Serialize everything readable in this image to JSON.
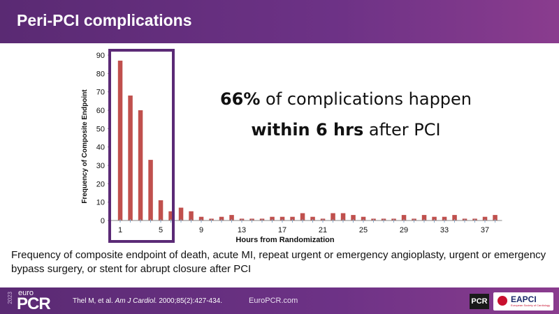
{
  "slide": {
    "title": "Peri-PCI complications",
    "headline": {
      "pct": "66%",
      "line1_rest": " of complications happen",
      "bold2": "within 6 hrs",
      "line2_rest": " after PCI"
    },
    "caption": "Frequency of composite endpoint of death, acute MI, repeat urgent or emergency angioplasty, urgent or emergency bypass surgery, or stent for abrupt closure after PCI"
  },
  "footer": {
    "logo_year": "2023",
    "logo_euro": "euro",
    "logo_pcr": "PCR",
    "citation_prefix": "Thel M, et al. ",
    "citation_journal": "Am J Cardiol.",
    "citation_suffix": " 2000;85(2):427-434.",
    "site": "EuroPCR.com",
    "pcr_badge": "PCR",
    "eapci_label": "EAPCI",
    "eapci_sub": "European Society of Cardiology"
  },
  "colors": {
    "bar": "#c0504d",
    "highlight_box": "#5b2a76",
    "header_bg": "#5a2a73"
  },
  "chart_data": {
    "type": "bar",
    "xlabel": "Hours from Randomization",
    "ylabel": "Frequency of Composite Endpoint",
    "ylim": [
      0,
      90
    ],
    "yticks": [
      0,
      10,
      20,
      30,
      40,
      50,
      60,
      70,
      80,
      90
    ],
    "xtick_labels": [
      1,
      5,
      9,
      13,
      17,
      21,
      25,
      29,
      33,
      37
    ],
    "x": [
      1,
      2,
      3,
      4,
      5,
      6,
      7,
      8,
      9,
      10,
      11,
      12,
      13,
      14,
      15,
      16,
      17,
      18,
      19,
      20,
      21,
      22,
      23,
      24,
      25,
      26,
      27,
      28,
      29,
      30,
      31,
      32,
      33,
      34,
      35,
      36,
      37,
      38
    ],
    "values": [
      87,
      68,
      60,
      33,
      11,
      5,
      7,
      5,
      2,
      1,
      2,
      3,
      1,
      1,
      1,
      2,
      2,
      2,
      4,
      2,
      1,
      4,
      4,
      3,
      2,
      1,
      1,
      1,
      3,
      1,
      3,
      2,
      2,
      3,
      1,
      1,
      2,
      3
    ],
    "highlight_range": [
      1,
      6
    ],
    "grid": false
  }
}
